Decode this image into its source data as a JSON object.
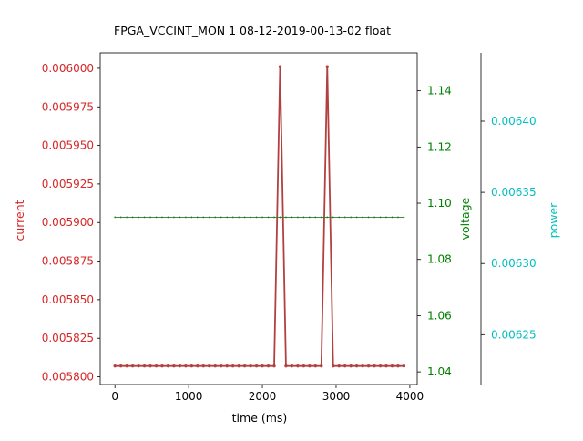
{
  "chart_data": {
    "type": "line",
    "title": "FPGA_VCCINT_MON   1   08-12-2019-00-13-02   float",
    "xlabel": "time (ms)",
    "xlim": [
      -200,
      4100
    ],
    "x_ticks": [
      0,
      1000,
      2000,
      3000,
      4000
    ],
    "x_tick_labels": [
      "0",
      "1000",
      "2000",
      "3000",
      "4000"
    ],
    "x": [
      0,
      80,
      160,
      240,
      320,
      400,
      480,
      560,
      640,
      720,
      800,
      880,
      960,
      1040,
      1120,
      1200,
      1280,
      1360,
      1440,
      1520,
      1600,
      1680,
      1760,
      1840,
      1920,
      2000,
      2080,
      2160,
      2240,
      2320,
      2400,
      2480,
      2560,
      2640,
      2720,
      2800,
      2880,
      2960,
      3040,
      3120,
      3200,
      3280,
      3360,
      3440,
      3520,
      3600,
      3680,
      3760,
      3840,
      3920
    ],
    "grid": false,
    "legend": "none",
    "axes": {
      "current": {
        "label": "current",
        "color": "#d62728",
        "ylim": [
          0.005795,
          0.00601
        ],
        "ticks": [
          0.0058,
          0.005825,
          0.00585,
          0.005875,
          0.0059,
          0.005925,
          0.00595,
          0.005975,
          0.006
        ],
        "tick_labels": [
          "0.005800",
          "0.005825",
          "0.005850",
          "0.005875",
          "0.005900",
          "0.005925",
          "0.005950",
          "0.005975",
          "0.006000"
        ]
      },
      "voltage": {
        "label": "voltage",
        "color": "#008000",
        "ylim": [
          1.0355,
          1.1535
        ],
        "ticks": [
          1.04,
          1.06,
          1.08,
          1.1,
          1.12,
          1.14
        ],
        "tick_labels": [
          "1.04",
          "1.06",
          "1.08",
          "1.10",
          "1.12",
          "1.14"
        ]
      },
      "power": {
        "label": "power",
        "color": "#00bfbf",
        "ylim": [
          0.006215,
          0.006448
        ],
        "ticks": [
          0.00625,
          0.0063,
          0.00635,
          0.0064
        ],
        "tick_labels": [
          "0.00625",
          "0.00630",
          "0.00635",
          "0.00640"
        ]
      }
    },
    "series": [
      {
        "axis": "current",
        "color": "#b34040",
        "values": [
          0.005807,
          0.005807,
          0.005807,
          0.005807,
          0.005807,
          0.005807,
          0.005807,
          0.005807,
          0.005807,
          0.005807,
          0.005807,
          0.005807,
          0.005807,
          0.005807,
          0.005807,
          0.005807,
          0.005807,
          0.005807,
          0.005807,
          0.005807,
          0.005807,
          0.005807,
          0.005807,
          0.005807,
          0.005807,
          0.005807,
          0.005807,
          0.005807,
          0.006001,
          0.005807,
          0.005807,
          0.005807,
          0.005807,
          0.005807,
          0.005807,
          0.005807,
          0.006001,
          0.005807,
          0.005807,
          0.005807,
          0.005807,
          0.005807,
          0.005807,
          0.005807,
          0.005807,
          0.005807,
          0.005807,
          0.005807,
          0.005807,
          0.005807
        ]
      },
      {
        "axis": "voltage",
        "color": "#2a7a2a",
        "values": [
          1.095,
          1.095,
          1.095,
          1.095,
          1.095,
          1.095,
          1.095,
          1.095,
          1.095,
          1.095,
          1.095,
          1.095,
          1.095,
          1.095,
          1.095,
          1.095,
          1.095,
          1.095,
          1.095,
          1.095,
          1.095,
          1.095,
          1.095,
          1.095,
          1.095,
          1.095,
          1.095,
          1.095,
          1.095,
          1.095,
          1.095,
          1.095,
          1.095,
          1.095,
          1.095,
          1.095,
          1.095,
          1.095,
          1.095,
          1.095,
          1.095,
          1.095,
          1.095,
          1.095,
          1.095,
          1.095,
          1.095,
          1.095,
          1.095,
          1.095
        ]
      }
    ]
  }
}
